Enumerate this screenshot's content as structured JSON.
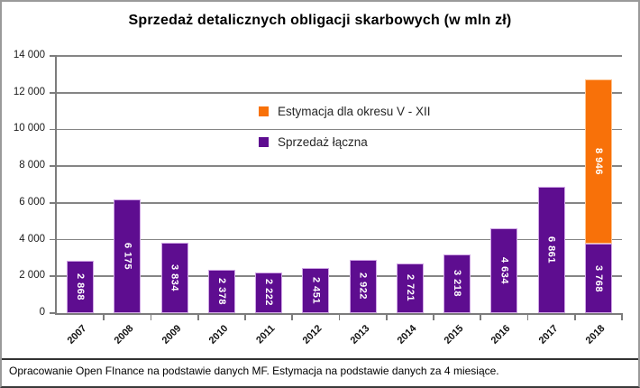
{
  "chart_data": {
    "type": "bar",
    "stacked": true,
    "title": "Sprzedaż detalicznych obligacji skarbowych (w mln zł)",
    "categories": [
      "2007",
      "2008",
      "2009",
      "2010",
      "2011",
      "2012",
      "2013",
      "2014",
      "2015",
      "2016",
      "2017",
      "2018"
    ],
    "series": [
      {
        "name": "Sprzedaż łączna",
        "color": "#5E0D90",
        "values": [
          2868,
          6175,
          3834,
          2378,
          2222,
          2451,
          2922,
          2721,
          3218,
          4634,
          6861,
          3768
        ],
        "labels": [
          "2 868",
          "6 175",
          "3 834",
          "2 378",
          "2 222",
          "2 451",
          "2 922",
          "2 721",
          "3 218",
          "4 634",
          "6 861",
          "3 768"
        ]
      },
      {
        "name": "Estymacja dla okresu V - XII",
        "color": "#F87109",
        "values": [
          null,
          null,
          null,
          null,
          null,
          null,
          null,
          null,
          null,
          null,
          null,
          8946
        ],
        "labels": [
          null,
          null,
          null,
          null,
          null,
          null,
          null,
          null,
          null,
          null,
          null,
          "8 946"
        ]
      }
    ],
    "ylim": [
      0,
      14000
    ],
    "ytick_step": 2000,
    "ytick_labels": [
      "0",
      "2 000",
      "4 000",
      "6 000",
      "8 000",
      "10 000",
      "12 000",
      "14 000"
    ],
    "grid": true,
    "legend_position": "inside-top-center"
  },
  "legend": {
    "items": [
      {
        "label": "Estymacja dla okresu V - XII",
        "color": "#F87109"
      },
      {
        "label": "Sprzedaż łączna",
        "color": "#5E0D90"
      }
    ]
  },
  "footer": {
    "text": "Opracowanie Open FInance na podstawie danych MF. Estymacja na podstawie danych za 4 miesiące."
  },
  "colors": {
    "bar_purple": "#5E0D90",
    "bar_orange": "#F87109",
    "gridline": "#858585",
    "axis": "#7C7C7C"
  }
}
